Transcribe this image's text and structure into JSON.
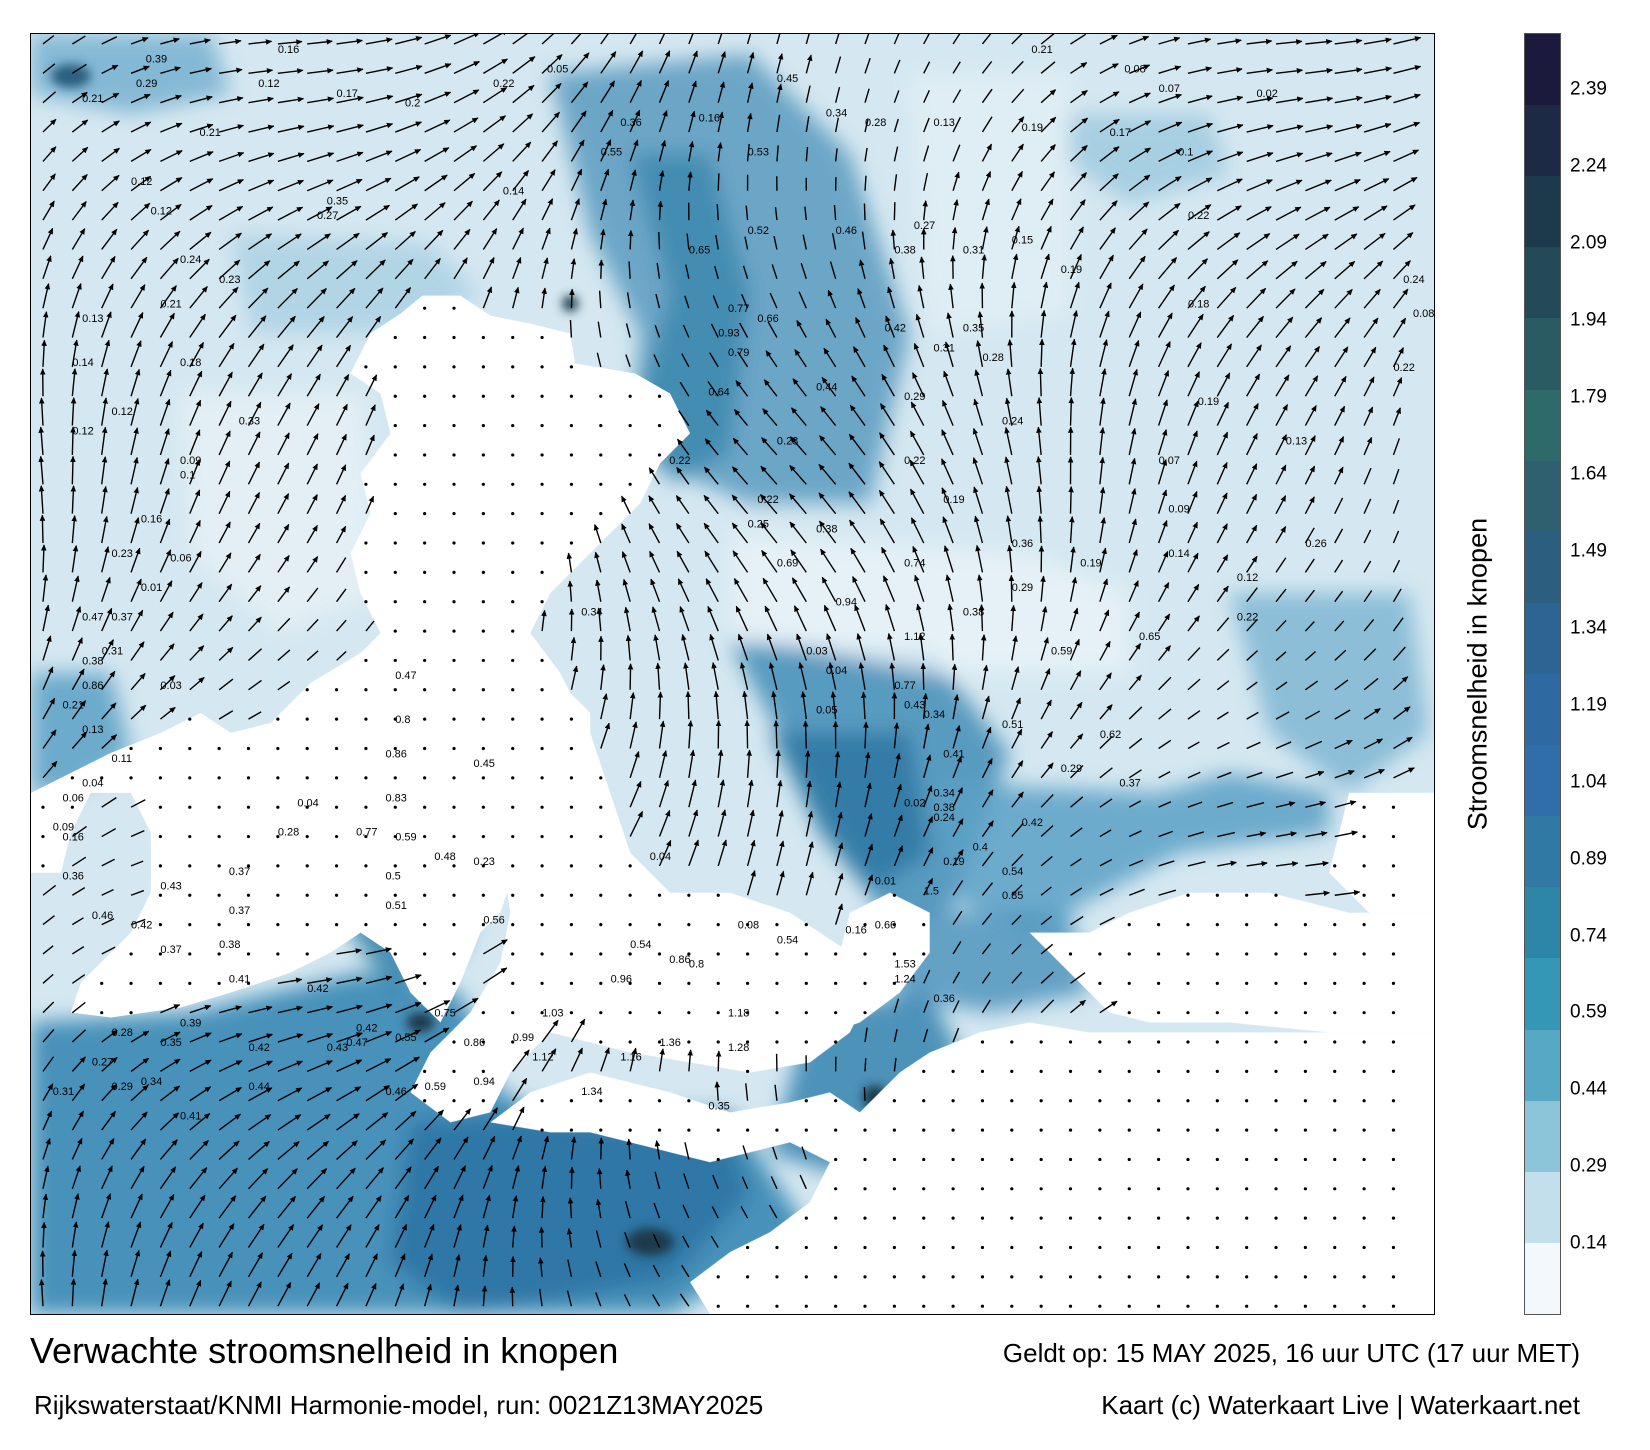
{
  "title": "Verwachte stroomsnelheid in knopen",
  "subtitle": "Rijkswaterstaat/KNMI Harmonie-model, run: 0021Z13MAY2025",
  "valid": "Geldt op: 15 MAY 2025, 16 uur UTC (17 uur MET)",
  "credit": "Kaart (c) Waterkaart Live | Waterkaart.net",
  "colorbar": {
    "label": "Stroomsnelheid in knopen",
    "ticks": [
      "2.39",
      "2.24",
      "2.09",
      "1.94",
      "1.79",
      "1.64",
      "1.49",
      "1.34",
      "1.19",
      "1.04",
      "0.89",
      "0.74",
      "0.59",
      "0.44",
      "0.29",
      "0.14"
    ],
    "tick_values": [
      2.39,
      2.24,
      2.09,
      1.94,
      1.79,
      1.64,
      1.49,
      1.34,
      1.19,
      1.04,
      0.89,
      0.74,
      0.59,
      0.44,
      0.29,
      0.14
    ],
    "range": [
      0,
      2.5
    ],
    "colors": [
      "#1b1a3c",
      "#1c2a46",
      "#1d3a4c",
      "#234a56",
      "#2a5a62",
      "#2e6a6a",
      "#2e6070",
      "#2c5f7f",
      "#2c6594",
      "#2f69a2",
      "#2f6ea8",
      "#2f79a4",
      "#2e86a6",
      "#3397b5",
      "#56a8c5",
      "#8cc4da",
      "#c2dfeb",
      "#f2f8fb"
    ]
  },
  "labels": [
    {
      "t": "0.39",
      "x": 10.5,
      "y": 1.5
    },
    {
      "t": "0.16",
      "x": 24.0,
      "y": 0.5
    },
    {
      "t": "0.21",
      "x": 4.0,
      "y": 5.5
    },
    {
      "t": "0.29",
      "x": 9.5,
      "y": 4.0
    },
    {
      "t": "0.12",
      "x": 22.0,
      "y": 4.0
    },
    {
      "t": "0.17",
      "x": 30.0,
      "y": 5.0
    },
    {
      "t": "0.22",
      "x": 46.0,
      "y": 4.0
    },
    {
      "t": "0.05",
      "x": 51.5,
      "y": 2.5
    },
    {
      "t": "0.16",
      "x": 67.0,
      "y": 7.5
    },
    {
      "t": "0.45",
      "x": 75.0,
      "y": 3.5
    },
    {
      "t": "0.21",
      "x": 101.0,
      "y": 0.5
    },
    {
      "t": "0.08",
      "x": 110.5,
      "y": 2.5
    },
    {
      "t": "0.07",
      "x": 114.0,
      "y": 4.5
    },
    {
      "t": "0.02",
      "x": 124.0,
      "y": 5.0
    },
    {
      "t": "0.21",
      "x": 16.0,
      "y": 9.0
    },
    {
      "t": "0.12",
      "x": 9.0,
      "y": 14.0
    },
    {
      "t": "0.2",
      "x": 37.0,
      "y": 6.0
    },
    {
      "t": "0.36",
      "x": 59.0,
      "y": 8.0
    },
    {
      "t": "0.55",
      "x": 57.0,
      "y": 11.0
    },
    {
      "t": "0.53",
      "x": 72.0,
      "y": 11.0
    },
    {
      "t": "0.34",
      "x": 80.0,
      "y": 7.0
    },
    {
      "t": "0.28",
      "x": 84.0,
      "y": 8.0
    },
    {
      "t": "0.13",
      "x": 91.0,
      "y": 8.0
    },
    {
      "t": "0.19",
      "x": 100.0,
      "y": 8.5
    },
    {
      "t": "0.17",
      "x": 109.0,
      "y": 9.0
    },
    {
      "t": "0.1",
      "x": 116.0,
      "y": 11.0
    },
    {
      "t": "0.12",
      "x": 11.0,
      "y": 17.0
    },
    {
      "t": "0.35",
      "x": 29.0,
      "y": 16.0
    },
    {
      "t": "0.27",
      "x": 28.0,
      "y": 17.5
    },
    {
      "t": "0.14",
      "x": 47.0,
      "y": 15.0
    },
    {
      "t": "0.52",
      "x": 72.0,
      "y": 19.0
    },
    {
      "t": "0.46",
      "x": 81.0,
      "y": 19.0
    },
    {
      "t": "0.27",
      "x": 89.0,
      "y": 18.5
    },
    {
      "t": "0.15",
      "x": 99.0,
      "y": 20.0
    },
    {
      "t": "0.22",
      "x": 117.0,
      "y": 17.5
    },
    {
      "t": "0.24",
      "x": 14.0,
      "y": 22.0
    },
    {
      "t": "0.23",
      "x": 18.0,
      "y": 24.0
    },
    {
      "t": "0.65",
      "x": 66.0,
      "y": 21.0
    },
    {
      "t": "0.38",
      "x": 87.0,
      "y": 21.0
    },
    {
      "t": "0.31",
      "x": 94.0,
      "y": 21.0
    },
    {
      "t": "0.19",
      "x": 104.0,
      "y": 23.0
    },
    {
      "t": "0.24",
      "x": 139.0,
      "y": 24.0
    },
    {
      "t": "0.13",
      "x": 4.0,
      "y": 28.0
    },
    {
      "t": "0.21",
      "x": 12.0,
      "y": 26.5
    },
    {
      "t": "0.77",
      "x": 70.0,
      "y": 27.0
    },
    {
      "t": "0.66",
      "x": 73.0,
      "y": 28.0
    },
    {
      "t": "0.42",
      "x": 86.0,
      "y": 29.0
    },
    {
      "t": "0.35",
      "x": 94.0,
      "y": 29.0
    },
    {
      "t": "0.18",
      "x": 117.0,
      "y": 26.5
    },
    {
      "t": "0.08",
      "x": 140.0,
      "y": 27.5
    },
    {
      "t": "0.14",
      "x": 3.0,
      "y": 32.5
    },
    {
      "t": "0.18",
      "x": 14.0,
      "y": 32.5
    },
    {
      "t": "0.93",
      "x": 69.0,
      "y": 29.5
    },
    {
      "t": "0.79",
      "x": 70.0,
      "y": 31.5
    },
    {
      "t": "0.31",
      "x": 91.0,
      "y": 31.0
    },
    {
      "t": "0.28",
      "x": 96.0,
      "y": 32.0
    },
    {
      "t": "0.22",
      "x": 138.0,
      "y": 33.0
    },
    {
      "t": "0.12",
      "x": 7.0,
      "y": 37.5
    },
    {
      "t": "0.64",
      "x": 68.0,
      "y": 35.5
    },
    {
      "t": "0.44",
      "x": 79.0,
      "y": 35.0
    },
    {
      "t": "0.29",
      "x": 88.0,
      "y": 36.0
    },
    {
      "t": "0.19",
      "x": 118.0,
      "y": 36.5
    },
    {
      "t": "0.12",
      "x": 3.0,
      "y": 39.5
    },
    {
      "t": "0.33",
      "x": 20.0,
      "y": 38.5
    },
    {
      "t": "0.28",
      "x": 75.0,
      "y": 40.5
    },
    {
      "t": "0.24",
      "x": 98.0,
      "y": 38.5
    },
    {
      "t": "0.13",
      "x": 127.0,
      "y": 40.5
    },
    {
      "t": "0.09",
      "x": 14.0,
      "y": 42.5
    },
    {
      "t": "0.22",
      "x": 64.0,
      "y": 42.5
    },
    {
      "t": "0.22",
      "x": 88.0,
      "y": 42.5
    },
    {
      "t": "0.07",
      "x": 114.0,
      "y": 42.5
    },
    {
      "t": "0.1",
      "x": 14.0,
      "y": 44.0
    },
    {
      "t": "0.22",
      "x": 73.0,
      "y": 46.5
    },
    {
      "t": "0.19",
      "x": 92.0,
      "y": 46.5
    },
    {
      "t": "0.09",
      "x": 115.0,
      "y": 47.5
    },
    {
      "t": "0.16",
      "x": 10.0,
      "y": 48.5
    },
    {
      "t": "0.25",
      "x": 72.0,
      "y": 49.0
    },
    {
      "t": "0.38",
      "x": 79.0,
      "y": 49.5
    },
    {
      "t": "0.36",
      "x": 99.0,
      "y": 51.0
    },
    {
      "t": "0.26",
      "x": 129.0,
      "y": 51.0
    },
    {
      "t": "0.23",
      "x": 7.0,
      "y": 52.0
    },
    {
      "t": "0.06",
      "x": 13.0,
      "y": 52.5
    },
    {
      "t": "0.69",
      "x": 75.0,
      "y": 53.0
    },
    {
      "t": "0.74",
      "x": 88.0,
      "y": 53.0
    },
    {
      "t": "0.19",
      "x": 106.0,
      "y": 53.0
    },
    {
      "t": "0.14",
      "x": 115.0,
      "y": 52.0
    },
    {
      "t": "0.01",
      "x": 10.0,
      "y": 55.5
    },
    {
      "t": "0.94",
      "x": 81.0,
      "y": 57.0
    },
    {
      "t": "0.29",
      "x": 99.0,
      "y": 55.5
    },
    {
      "t": "0.12",
      "x": 122.0,
      "y": 54.5
    },
    {
      "t": "0.47",
      "x": 4.0,
      "y": 58.5
    },
    {
      "t": "0.37",
      "x": 7.0,
      "y": 58.5
    },
    {
      "t": "1.12",
      "x": 88.0,
      "y": 60.5
    },
    {
      "t": "0.38",
      "x": 94.0,
      "y": 58.0
    },
    {
      "t": "0.22",
      "x": 122.0,
      "y": 58.5
    },
    {
      "t": "0.31",
      "x": 6.0,
      "y": 62.0
    },
    {
      "t": "0.38",
      "x": 4.0,
      "y": 63.0
    },
    {
      "t": "0.34",
      "x": 55.0,
      "y": 58.0
    },
    {
      "t": "0.59",
      "x": 103.0,
      "y": 62.0
    },
    {
      "t": "0.65",
      "x": 112.0,
      "y": 60.5
    },
    {
      "t": "0.86",
      "x": 4.0,
      "y": 65.5
    },
    {
      "t": "0.03",
      "x": 12.0,
      "y": 65.5
    },
    {
      "t": "0.47",
      "x": 36.0,
      "y": 64.5
    },
    {
      "t": "0.77",
      "x": 87.0,
      "y": 65.5
    },
    {
      "t": "0.43",
      "x": 88.0,
      "y": 67.5
    },
    {
      "t": "0.05",
      "x": 79.0,
      "y": 68.0
    },
    {
      "t": "0.21",
      "x": 2.0,
      "y": 67.5
    },
    {
      "t": "0.13",
      "x": 4.0,
      "y": 70.0
    },
    {
      "t": "0.8",
      "x": 36.0,
      "y": 69.0
    },
    {
      "t": "0.34",
      "x": 90.0,
      "y": 68.5
    },
    {
      "t": "0.51",
      "x": 98.0,
      "y": 69.5
    },
    {
      "t": "0.62",
      "x": 108.0,
      "y": 70.5
    },
    {
      "t": "0.11",
      "x": 7.0,
      "y": 73.0
    },
    {
      "t": "0.86",
      "x": 35.0,
      "y": 72.5
    },
    {
      "t": "0.45",
      "x": 44.0,
      "y": 73.5
    },
    {
      "t": "0.41",
      "x": 92.0,
      "y": 72.5
    },
    {
      "t": "0.29",
      "x": 104.0,
      "y": 74.0
    },
    {
      "t": "0.04",
      "x": 4.0,
      "y": 75.5
    },
    {
      "t": "0.83",
      "x": 35.0,
      "y": 77.0
    },
    {
      "t": "0.34",
      "x": 91.0,
      "y": 76.5
    },
    {
      "t": "0.37",
      "x": 110.0,
      "y": 75.5
    },
    {
      "t": "0.06",
      "x": 2.0,
      "y": 77.0
    },
    {
      "t": "0.04",
      "x": 26.0,
      "y": 77.5
    },
    {
      "t": "0.38",
      "x": 91.0,
      "y": 78.0
    },
    {
      "t": "0.42",
      "x": 100.0,
      "y": 79.5
    },
    {
      "t": "0.09",
      "x": 1.0,
      "y": 80.0
    },
    {
      "t": "0.16",
      "x": 2.0,
      "y": 81.0
    },
    {
      "t": "0.28",
      "x": 24.0,
      "y": 80.5
    },
    {
      "t": "0.77",
      "x": 32.0,
      "y": 80.5
    },
    {
      "t": "0.59",
      "x": 36.0,
      "y": 81.0
    },
    {
      "t": "0.48",
      "x": 40.0,
      "y": 83.0
    },
    {
      "t": "0.23",
      "x": 44.0,
      "y": 83.5
    },
    {
      "t": "0.37",
      "x": 19.0,
      "y": 84.5
    },
    {
      "t": "0.43",
      "x": 12.0,
      "y": 86.0
    },
    {
      "t": "0.5",
      "x": 35.0,
      "y": 85.0
    },
    {
      "t": "0.36",
      "x": 2.0,
      "y": 85.0
    },
    {
      "t": "0.51",
      "x": 35.0,
      "y": 88.0
    },
    {
      "t": "0.46",
      "x": 5.0,
      "y": 89.0
    },
    {
      "t": "0.37",
      "x": 19.0,
      "y": 88.5
    },
    {
      "t": "0.56",
      "x": 45.0,
      "y": 89.5
    },
    {
      "t": "0.42",
      "x": 9.0,
      "y": 90.0
    },
    {
      "t": "0.37",
      "x": 12.0,
      "y": 92.5
    },
    {
      "t": "0.38",
      "x": 18.0,
      "y": 92.0
    },
    {
      "t": "0.54",
      "x": 60.0,
      "y": 92.0
    },
    {
      "t": "0.41",
      "x": 19.0,
      "y": 95.5
    },
    {
      "t": "0.42",
      "x": 27.0,
      "y": 96.5
    },
    {
      "t": "0.86",
      "x": 64.0,
      "y": 93.5
    },
    {
      "t": "0.75",
      "x": 40.0,
      "y": 99.0
    },
    {
      "t": "1.03",
      "x": 51.0,
      "y": 99.0
    },
    {
      "t": "1.18",
      "x": 70.0,
      "y": 99.0
    },
    {
      "t": "0.99",
      "x": 48.0,
      "y": 101.5
    },
    {
      "t": "0.55",
      "x": 36.0,
      "y": 101.5
    },
    {
      "t": "0.42",
      "x": 32.0,
      "y": 100.5
    },
    {
      "t": "0.39",
      "x": 14.0,
      "y": 100.0
    },
    {
      "t": "0.28",
      "x": 7.0,
      "y": 101.0
    },
    {
      "t": "0.35",
      "x": 12.0,
      "y": 102.0
    },
    {
      "t": "0.42",
      "x": 21.0,
      "y": 102.5
    },
    {
      "t": "0.43",
      "x": 29.0,
      "y": 102.5
    },
    {
      "t": "0.47",
      "x": 31.0,
      "y": 102.0
    },
    {
      "t": "0.86",
      "x": 43.0,
      "y": 102.0
    },
    {
      "t": "0.27",
      "x": 5.0,
      "y": 104.0
    },
    {
      "t": "1.12",
      "x": 50.0,
      "y": 103.5
    },
    {
      "t": "1.16",
      "x": 59.0,
      "y": 103.5
    },
    {
      "t": "1.36",
      "x": 63.0,
      "y": 102.0
    },
    {
      "t": "1.28",
      "x": 70.0,
      "y": 102.5
    },
    {
      "t": "0.31",
      "x": 1.0,
      "y": 107.0
    },
    {
      "t": "0.29",
      "x": 7.0,
      "y": 106.5
    },
    {
      "t": "0.34",
      "x": 10.0,
      "y": 106.0
    },
    {
      "t": "0.44",
      "x": 21.0,
      "y": 106.5
    },
    {
      "t": "0.46",
      "x": 35.0,
      "y": 107.0
    },
    {
      "t": "0.59",
      "x": 39.0,
      "y": 106.5
    },
    {
      "t": "0.94",
      "x": 44.0,
      "y": 106.0
    },
    {
      "t": "1.34",
      "x": 55.0,
      "y": 107.0
    },
    {
      "t": "0.41",
      "x": 14.0,
      "y": 109.5
    },
    {
      "t": "0.35",
      "x": 68.0,
      "y": 108.5
    },
    {
      "t": "1.53",
      "x": 87.0,
      "y": 94.0
    },
    {
      "t": "1.24",
      "x": 87.0,
      "y": 95.5
    },
    {
      "t": "0.96",
      "x": 58.0,
      "y": 95.5
    },
    {
      "t": "0.36",
      "x": 91.0,
      "y": 97.5
    },
    {
      "t": "0.8",
      "x": 66.0,
      "y": 94.0
    },
    {
      "t": "0.54",
      "x": 75.0,
      "y": 91.5
    },
    {
      "t": "0.08",
      "x": 71.0,
      "y": 90.0
    },
    {
      "t": "0.16",
      "x": 82.0,
      "y": 90.5
    },
    {
      "t": "0.66",
      "x": 85.0,
      "y": 90.0
    },
    {
      "t": "1.5",
      "x": 90.0,
      "y": 86.5
    },
    {
      "t": "0.85",
      "x": 98.0,
      "y": 87.0
    },
    {
      "t": "0.54",
      "x": 98.0,
      "y": 84.5
    },
    {
      "t": "0.19",
      "x": 92.0,
      "y": 83.5
    },
    {
      "t": "0.4",
      "x": 95.0,
      "y": 82.0
    },
    {
      "t": "0.01",
      "x": 85.0,
      "y": 85.5
    },
    {
      "t": "0.24",
      "x": 91.0,
      "y": 79.0
    },
    {
      "t": "0.02",
      "x": 88.0,
      "y": 77.5
    },
    {
      "t": "0.03",
      "x": 78.0,
      "y": 62.0
    },
    {
      "t": "0.04",
      "x": 80.0,
      "y": 64.0
    },
    {
      "t": "0.04",
      "x": 62.0,
      "y": 83.0
    }
  ]
}
